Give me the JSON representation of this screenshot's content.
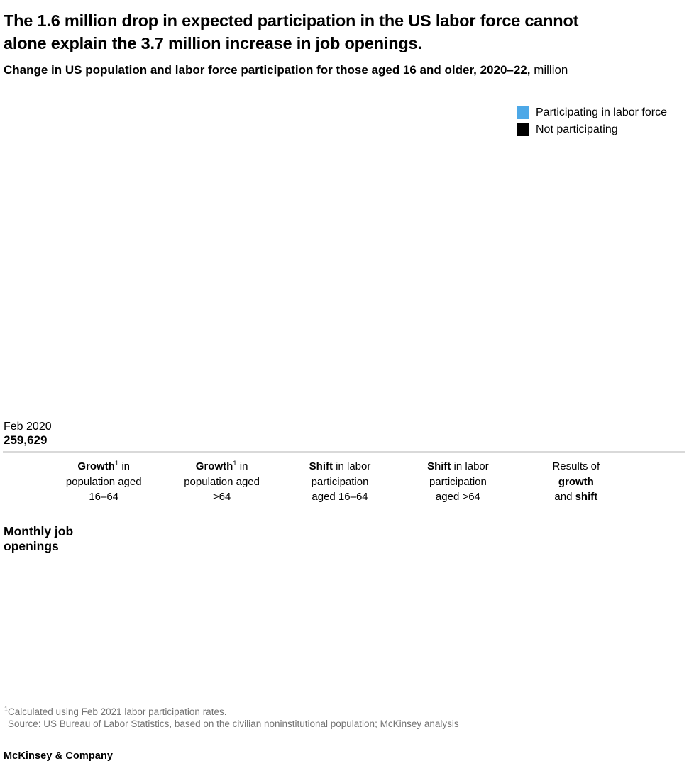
{
  "header": {
    "title_line1": "The 1.6 million drop in expected participation in the US labor force cannot",
    "title_line2": "alone explain the 3.7 million increase in job openings.",
    "subtitle_bold": "Change in US population and labor force participation for those aged 16 and older, 2020–22,",
    "subtitle_regular": " million"
  },
  "legend": {
    "items": [
      {
        "label": "Participating in labor force",
        "color": "#4DA8E7"
      },
      {
        "label": "Not participating",
        "color": "#000000"
      }
    ]
  },
  "baseline": {
    "period": "Feb 2020",
    "value": "259,629"
  },
  "columns": [
    {
      "bold": "Growth",
      "sup": "1",
      "rest": " in",
      "line2": "population aged",
      "line3": "16–64"
    },
    {
      "bold": "Growth",
      "sup": "1",
      "rest": " in",
      "line2": "population aged",
      "line3": ">64"
    },
    {
      "bold": "Shift",
      "rest": " in labor",
      "line2": "participation",
      "line3": "aged 16–64"
    },
    {
      "bold": "Shift",
      "rest": " in labor",
      "line2": "participation",
      "line3": "aged >64"
    },
    {
      "line1": "Results of",
      "line2_bold": "growth",
      "line3_prefix": "and ",
      "line3_bold": "shift"
    }
  ],
  "row_label": {
    "line1": "Monthly job",
    "line2": "openings"
  },
  "footnotes": {
    "sup": "1",
    "note1": "Calculated using Feb 2021 labor participation rates.",
    "source": "Source: US Bureau of Labor Statistics, based on the civilian noninstitutional population; McKinsey analysis"
  },
  "footer": {
    "brand": "McKinsey & Company"
  },
  "chart_data": {
    "type": "bar",
    "title": "Change in US population and labor force participation for those aged 16 and older, 2020–22, million",
    "baseline": {
      "label": "Feb 2020",
      "value": "259,629"
    },
    "categories": [
      "Growth¹ in population aged 16–64",
      "Growth¹ in population aged >64",
      "Shift in labor participation aged 16–64",
      "Shift in labor participation aged >64",
      "Results of growth and shift"
    ],
    "series": [
      {
        "name": "Participating in labor force",
        "color": "#4DA8E7",
        "values": []
      },
      {
        "name": "Not participating",
        "color": "#000000",
        "values": []
      }
    ],
    "row_labels": [
      "Monthly job openings"
    ],
    "legend_position": "top-right",
    "plot_area_rendered": false
  }
}
